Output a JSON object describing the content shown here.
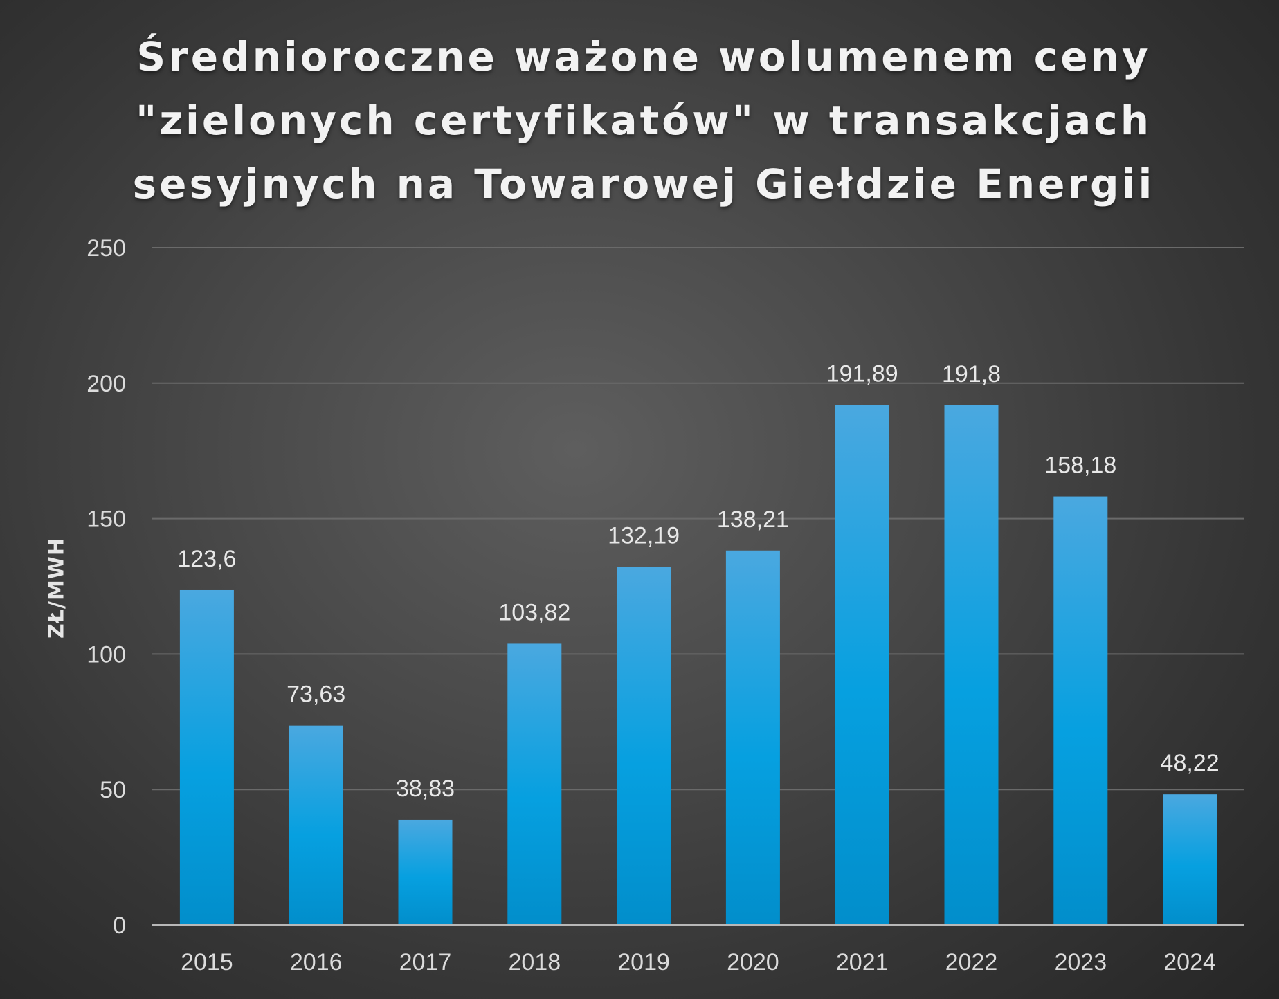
{
  "chart_data": {
    "type": "bar",
    "title_lines": [
      "Średnioroczne ważone wolumenem ceny",
      "\"zielonych certyfikatów\" w transakcjach",
      "sesyjnych na Towarowej Giełdzie Energii"
    ],
    "ylabel": "ZŁ/MWH",
    "xlabel": "",
    "categories": [
      "2015",
      "2016",
      "2017",
      "2018",
      "2019",
      "2020",
      "2021",
      "2022",
      "2023",
      "2024"
    ],
    "values": [
      123.6,
      73.63,
      38.83,
      103.82,
      132.19,
      138.21,
      191.89,
      191.8,
      158.18,
      48.22
    ],
    "value_labels": [
      "123,6",
      "73,63",
      "38,83",
      "103,82",
      "132,19",
      "138,21",
      "191,89",
      "191,8",
      "158,18",
      "48,22"
    ],
    "ylim": [
      0,
      250
    ],
    "yticks": [
      "0",
      "50",
      "100",
      "150",
      "200",
      "250"
    ],
    "grid": true,
    "legend": "none",
    "colors": {
      "bar_top": "#4aa8e0",
      "bar_mid": "#06a0e0",
      "bar_bottom": "#028ecb",
      "gridline": "#6a6a6a",
      "baseline": "#b8b8b8",
      "text": "#e8e8e8"
    }
  }
}
